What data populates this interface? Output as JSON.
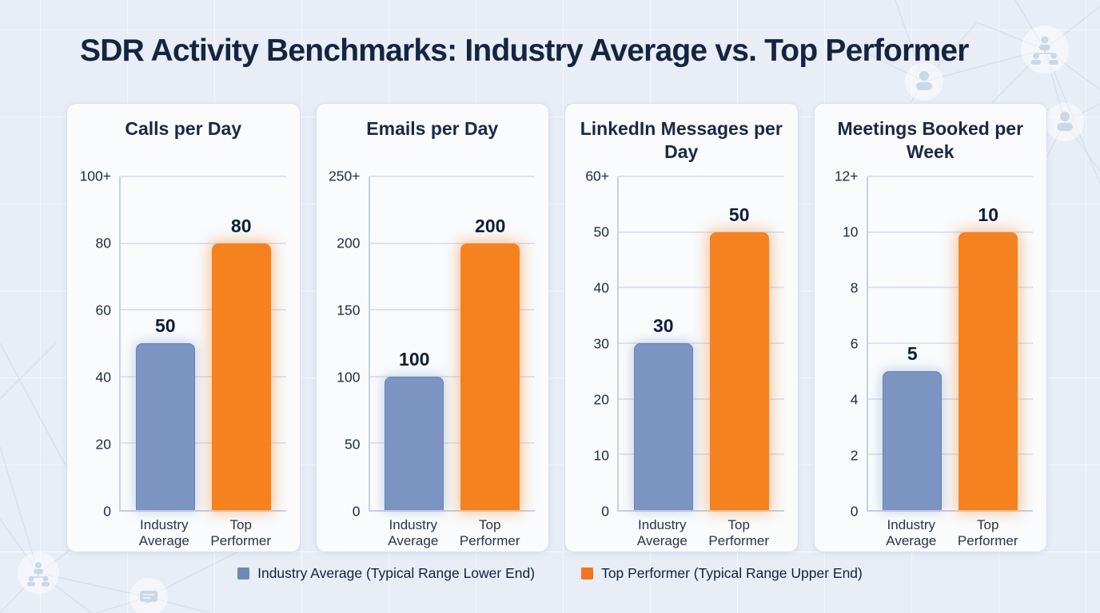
{
  "page": {
    "title": "SDR Activity Benchmarks: Industry Average vs. Top Performer"
  },
  "colors": {
    "background": "#e8edf6",
    "card_background": "#f9fbfd",
    "title_text": "#152440",
    "industry_average_bar": "#7b94c1",
    "top_performer_bar": "#f6811f",
    "legend_industry_swatch": "#6d89b8",
    "legend_top_swatch": "#f4741c",
    "plot_gridline": "#dde3ee",
    "plot_axis": "#c8d1df"
  },
  "legend": {
    "items": [
      {
        "label": "Industry Average (Typical Range Lower End)",
        "swatch_color": "#6d89b8"
      },
      {
        "label": "Top Performer (Typical Range Upper End)",
        "swatch_color": "#f4741c"
      }
    ]
  },
  "chart_data": [
    {
      "type": "bar",
      "title": "Calls per Day",
      "categories": [
        "Industry Average",
        "Top Performer"
      ],
      "values": [
        50,
        80
      ],
      "ylim": [
        0,
        100
      ],
      "yticks": [
        0,
        20,
        40,
        60,
        80,
        100
      ],
      "ytick_labels": [
        "0",
        "20",
        "40",
        "60",
        "80",
        "100+"
      ],
      "grid": true,
      "legend_position": "shared-bottom"
    },
    {
      "type": "bar",
      "title": "Emails per Day",
      "categories": [
        "Industry Average",
        "Top Performer"
      ],
      "values": [
        100,
        200
      ],
      "ylim": [
        0,
        250
      ],
      "yticks": [
        0,
        50,
        100,
        150,
        200,
        250
      ],
      "ytick_labels": [
        "0",
        "50",
        "100",
        "150",
        "200",
        "250+"
      ],
      "grid": true,
      "legend_position": "shared-bottom"
    },
    {
      "type": "bar",
      "title": "LinkedIn Messages per Day",
      "categories": [
        "Industry Average",
        "Top Performer"
      ],
      "values": [
        30,
        50
      ],
      "ylim": [
        0,
        60
      ],
      "yticks": [
        0,
        10,
        20,
        30,
        40,
        50,
        60
      ],
      "ytick_labels": [
        "0",
        "10",
        "20",
        "30",
        "40",
        "50",
        "60+"
      ],
      "grid": true,
      "legend_position": "shared-bottom"
    },
    {
      "type": "bar",
      "title": "Meetings Booked per Week",
      "categories": [
        "Industry Average",
        "Top Performer"
      ],
      "values": [
        5,
        10
      ],
      "ylim": [
        0,
        12
      ],
      "yticks": [
        0,
        2,
        4,
        6,
        8,
        10,
        12
      ],
      "ytick_labels": [
        "0",
        "2",
        "4",
        "6",
        "8",
        "10",
        "12+"
      ],
      "grid": true,
      "legend_position": "shared-bottom"
    }
  ]
}
